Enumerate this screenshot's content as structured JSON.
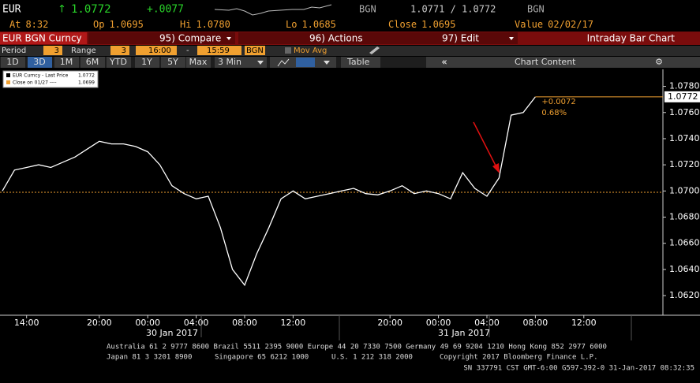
{
  "header": {
    "ticker": "EUR",
    "arrow": "↑",
    "last": "1.0772",
    "change": "+.0077",
    "currency": "BGN",
    "bid_ask": "1.0771 / 1.0772",
    "currency2": "BGN",
    "stats": [
      {
        "label": "At",
        "value": "8:32"
      },
      {
        "label": "Op",
        "value": "1.0695"
      },
      {
        "label": "Hi",
        "value": "1.0780"
      },
      {
        "label": "Lo",
        "value": "1.0685"
      },
      {
        "label": "Close",
        "value": "1.0695"
      },
      {
        "label": "Value",
        "value": "02/02/17"
      }
    ]
  },
  "menu": {
    "security": "EUR BGN Curncy",
    "items": [
      "95) Compare",
      "96) Actions",
      "97) Edit"
    ],
    "view": "Intraday Bar Chart"
  },
  "settings": {
    "period_label": "Period",
    "period": "3",
    "range_label": "Range",
    "range": "3",
    "start": "16:00",
    "dash": "-",
    "end": "15:59",
    "currency": "BGN",
    "mov_avg": "Mov Avg"
  },
  "toolbar": {
    "ranges": [
      "1D",
      "3D",
      "1M",
      "6M",
      "YTD",
      "1Y",
      "5Y",
      "Max"
    ],
    "interval": "3 Min",
    "table": "Table",
    "collapse": "«",
    "content": "Chart Content"
  },
  "chart_data": {
    "type": "line",
    "categories": [
      null,
      null,
      "14:00",
      null,
      null,
      null,
      null,
      null,
      "20:00",
      null,
      null,
      null,
      "00:00",
      null,
      null,
      null,
      "04:00",
      null,
      null,
      null,
      "08:00",
      null,
      null,
      null,
      "12:00",
      null,
      null,
      null,
      null,
      null,
      null,
      null,
      "20:00",
      null,
      null,
      null,
      "00:00",
      null,
      null,
      null,
      "04:00",
      null,
      null,
      null,
      "08:00",
      null,
      null,
      null,
      "12:00",
      null,
      null,
      null,
      null,
      null
    ],
    "date_labels": [
      "30 Jan 2017",
      "31 Jan 2017"
    ],
    "series": [
      {
        "name": "EUR Curncy - Last Price",
        "color": "#ffffff",
        "values": [
          1.07,
          1.0716,
          1.0718,
          1.072,
          1.0718,
          1.0722,
          1.0726,
          1.0732,
          1.0738,
          1.0736,
          1.0736,
          1.0734,
          1.073,
          1.072,
          1.0704,
          1.0698,
          1.0694,
          1.0696,
          1.0672,
          1.064,
          1.0628,
          1.0652,
          1.0672,
          1.0694,
          1.07,
          1.0694,
          1.0696,
          1.0698,
          1.07,
          1.0702,
          1.0698,
          1.0697,
          1.07,
          1.0704,
          1.0698,
          1.07,
          1.0698,
          1.0694,
          1.0714,
          1.0702,
          1.0696,
          1.071,
          1.0758,
          1.076,
          1.0772,
          null,
          null,
          null,
          null,
          null,
          null,
          null,
          null,
          null
        ]
      }
    ],
    "legend_last": "1.0772",
    "reference": {
      "name": "Close on 01/27 ----",
      "value": 1.0699,
      "label": "1.0699",
      "color": "#f0a030"
    },
    "last_label": "1.0772",
    "change_label": "+0.0072",
    "pct_label": "0.68%",
    "ylim": [
      1.0605,
      1.0793
    ],
    "yticks": [
      {
        "value": 1.062,
        "label": "1.0620"
      },
      {
        "value": 1.064,
        "label": "1.0640"
      },
      {
        "value": 1.066,
        "label": "1.0660"
      },
      {
        "value": 1.068,
        "label": "1.0680"
      },
      {
        "value": 1.07,
        "label": "1.0700"
      },
      {
        "value": 1.072,
        "label": "1.0720"
      },
      {
        "value": 1.074,
        "label": "1.0740"
      },
      {
        "value": 1.076,
        "label": "1.0760"
      },
      {
        "value": 1.078,
        "label": "1.0780"
      }
    ],
    "grid": false
  },
  "footer": {
    "line1": "Australia 61 2 9777 8600 Brazil 5511 2395 9000 Europe 44 20 7330 7500 Germany 49 69 9204 1210 Hong Kong 852 2977 6000",
    "line2": [
      "Japan 81 3 3201 8900",
      "Singapore 65 6212 1000",
      "U.S. 1 212 318 2000",
      "Copyright 2017 Bloomberg Finance L.P."
    ],
    "line3": "SN 337791 CST  GMT-6:00 G597-392-0 31-Jan-2017 08:32:35"
  }
}
